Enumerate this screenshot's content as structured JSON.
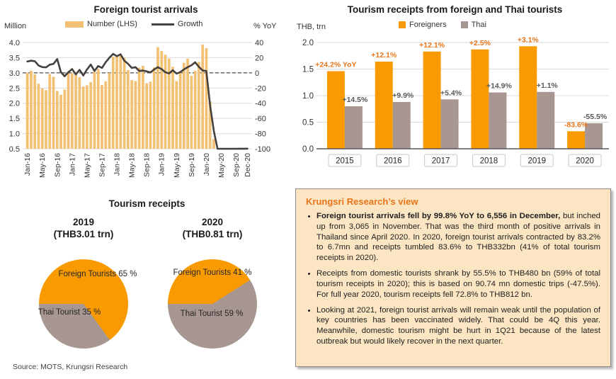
{
  "colors": {
    "bar_light_orange": "#F3C173",
    "orange": "#F99B00",
    "taupe": "#A79691",
    "line_dark": "#46403C",
    "accent_orange": "#E8751A",
    "label_gray": "#595959",
    "grid": "#D9D9D9",
    "axis_dark": "#595959",
    "text_dark": "#333333",
    "box_bg": "#FBE5C3"
  },
  "chart_data": [
    {
      "type": "bar+line",
      "title": "Foreign tourist arrivals",
      "left_axis": {
        "label": "Million",
        "min": 0.5,
        "max": 4.0,
        "ticks": [
          "4.0",
          "3.5",
          "3.0",
          "2.5",
          "2.0",
          "1.5",
          "1.0",
          "0.5"
        ]
      },
      "right_axis": {
        "label": "% YoY",
        "min": -100,
        "max": 40,
        "ticks": [
          "40",
          "20",
          "0",
          "-20",
          "-40",
          "-60",
          "-80",
          "-100"
        ]
      },
      "zero_line_left_value": 3.0,
      "legend": {
        "bars": "Number (LHS)",
        "line": "Growth"
      },
      "x_ticks": [
        "Jan-16",
        "May-16",
        "Sep-16",
        "Jan-17",
        "May-17",
        "Sep-17",
        "Jan-18",
        "May-18",
        "Sep-18",
        "Jan-19",
        "May-19",
        "Sep-19",
        "Jan-20",
        "May-20",
        "Sep-20",
        "Dec-20"
      ],
      "x_tick_idx": [
        0,
        4,
        8,
        12,
        16,
        20,
        24,
        28,
        32,
        36,
        40,
        44,
        48,
        52,
        56,
        59
      ],
      "series": [
        {
          "name": "Number (LHS)",
          "axis": "left",
          "values": [
            3.0,
            3.07,
            2.95,
            2.64,
            2.49,
            2.43,
            2.96,
            2.87,
            2.4,
            2.28,
            2.45,
            2.99,
            2.99,
            2.93,
            2.86,
            2.55,
            2.59,
            2.7,
            3.03,
            3.13,
            2.6,
            2.72,
            3.0,
            3.53,
            3.54,
            3.57,
            3.5,
            3.09,
            2.76,
            2.73,
            3.17,
            3.23,
            2.66,
            2.71,
            3.18,
            3.85,
            3.72,
            3.6,
            3.47,
            3.2,
            2.73,
            3.05,
            3.33,
            3.47,
            2.9,
            3.07,
            3.36,
            3.93,
            3.81,
            2.06,
            0.82,
            0.0,
            0.0,
            0.0,
            0.0,
            0.0,
            0.0,
            0.0,
            0.0,
            0.01
          ]
        },
        {
          "name": "Growth",
          "axis": "right",
          "values": [
            15.0,
            16.0,
            15.4,
            9.8,
            7.6,
            7.2,
            10.8,
            11.8,
            18.2,
            1.0,
            -4.4,
            0.9,
            5.0,
            -2.0,
            4.0,
            -3.5,
            4.5,
            11.0,
            2.5,
            9.0,
            6.5,
            14.0,
            20.0,
            25.0,
            22.0,
            24.5,
            16.0,
            12.0,
            6.5,
            7.5,
            2.5,
            3.0,
            2.0,
            0.5,
            4.5,
            7.5,
            4.9,
            0.8,
            -0.7,
            3.5,
            -1.0,
            1.0,
            4.5,
            7.5,
            10.0,
            14.0,
            8.0,
            3.0,
            2.5,
            -42.8,
            -76.4,
            -100,
            -100,
            -100,
            -100,
            -100,
            -100,
            -99.9,
            -99.9,
            -99.8
          ]
        }
      ]
    },
    {
      "type": "bar",
      "title": "Tourism receipts from foreign and Thai tourists",
      "ylabel": "THB, trn",
      "ylim": [
        0,
        2.0
      ],
      "y_ticks": [
        "2.0",
        "1.5",
        "1.0",
        "0.5",
        "0.0"
      ],
      "categories": [
        "2015",
        "2016",
        "2017",
        "2018",
        "2019",
        "2020"
      ],
      "series": [
        {
          "name": "Foreigners",
          "values": [
            1.46,
            1.64,
            1.83,
            1.87,
            1.93,
            0.33
          ],
          "labels": [
            "+24.2% YoY",
            "+12.1%",
            "+12.1%",
            "+2.5%",
            "+3.1%",
            "-83.6%"
          ]
        },
        {
          "name": "Thai",
          "values": [
            0.8,
            0.88,
            0.93,
            1.06,
            1.07,
            0.48
          ],
          "labels": [
            "+14.5%",
            "+9.9%",
            "+5.4%",
            "+14.9%",
            "+1.1%",
            "-55.5%"
          ]
        }
      ]
    },
    {
      "type": "pie",
      "section_title": "Tourism receipts",
      "title": "2019",
      "subtitle": "(THB3.01 trn)",
      "slices": [
        {
          "name": "Foreign Tourists",
          "pct": 65,
          "label": "Foreign Tourists 65 %",
          "color": "orange"
        },
        {
          "name": "Thai Tourist",
          "pct": 35,
          "label": "Thai Tourist 35 %",
          "color": "taupe"
        }
      ]
    },
    {
      "type": "pie",
      "title": "2020",
      "subtitle": "(THB0.81 trn)",
      "slices": [
        {
          "name": "Foreign Tourists",
          "pct": 41,
          "label": "Foreign Tourists 41 %",
          "color": "orange"
        },
        {
          "name": "Thai Tourist",
          "pct": 59,
          "label": "Thai Tourist 59 %",
          "color": "taupe"
        }
      ]
    }
  ],
  "view": {
    "heading": "Krungsri Research’s view",
    "bullets": [
      {
        "bold": "Foreign tourist arrivals fell by 99.8% YoY to 6,556 in December,",
        "text": " but inched up from 3,065 in November. That was the third month of positive arrivals in Thailand since April 2020. In 2020, foreign tourist arrivals contracted by 83.2% to 6.7mn and receipts tumbled 83.6% to THB332bn (41% of total tourism receipts in 2020)."
      },
      {
        "bold": "",
        "text": "Receipts from domestic tourists shrank by 55.5% to THB480 bn (59% of total tourism receipts in 2020); this is based on 90.74 mn domestic trips (-47.5%). For full year 2020, tourism receipts fell 72.8% to THB812 bn."
      },
      {
        "bold": "",
        "text": "Looking at 2021, foreign tourist arrivals will remain weak until the population of key countries has been vaccinated widely. That could be 4Q this year. Meanwhile, domestic tourism might be hurt in 1Q21 because of the latest outbreak but would likely recover in the next quarter."
      }
    ]
  },
  "source": "Source: MOTS, Krungsri Research"
}
